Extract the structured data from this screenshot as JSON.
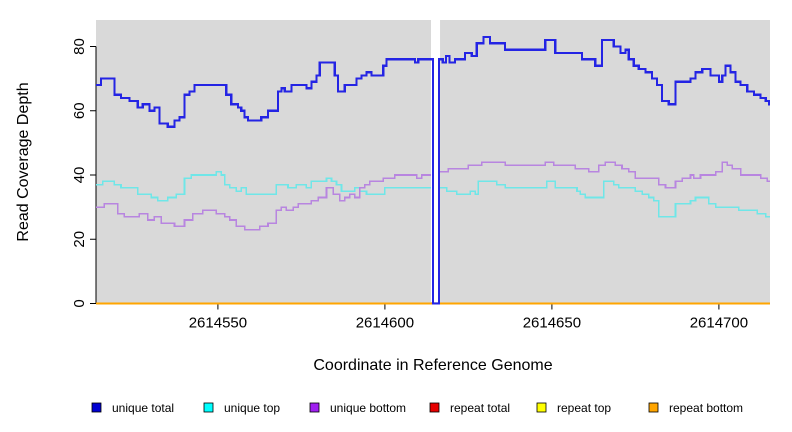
{
  "chart_data": {
    "type": "line",
    "subtype": "step",
    "title": "",
    "xlabel": "Coordinate in Reference Genome",
    "ylabel": "Read Coverage Depth",
    "x_range": [
      2614513.5,
      2614715.3
    ],
    "y_range": [
      0,
      88
    ],
    "x_ticks": [
      2614550,
      2614600,
      2614650,
      2614700
    ],
    "y_ticks": [
      0,
      20,
      40,
      60,
      80
    ],
    "grid": "off",
    "legend_position": "bottom",
    "plot_bg_color": "#d9d9d9",
    "axis_color": "#000000",
    "gap_region": {
      "x_start": 2614613.8,
      "x_end": 2614616.5,
      "fill": "#ffffff"
    },
    "series": [
      {
        "name": "unique total",
        "legend_color": "#0000d2",
        "line_color": "#2424e4",
        "line_width": 2.2,
        "points": [
          [
            2614513.5,
            68
          ],
          [
            2614515,
            70
          ],
          [
            2614519,
            65
          ],
          [
            2614521,
            64
          ],
          [
            2614523.5,
            63
          ],
          [
            2614526,
            61
          ],
          [
            2614527.5,
            62
          ],
          [
            2614529.5,
            60
          ],
          [
            2614531,
            61
          ],
          [
            2614532.5,
            56
          ],
          [
            2614535,
            55
          ],
          [
            2614537,
            57
          ],
          [
            2614538.5,
            58
          ],
          [
            2614540,
            65
          ],
          [
            2614541.5,
            66
          ],
          [
            2614543,
            68
          ],
          [
            2614552.5,
            65
          ],
          [
            2614554,
            62
          ],
          [
            2614556,
            61
          ],
          [
            2614557,
            60
          ],
          [
            2614558,
            58
          ],
          [
            2614559,
            57
          ],
          [
            2614563,
            58
          ],
          [
            2614565,
            60
          ],
          [
            2614568,
            66
          ],
          [
            2614569,
            67
          ],
          [
            2614570,
            66
          ],
          [
            2614572,
            68
          ],
          [
            2614576.5,
            67
          ],
          [
            2614578,
            69
          ],
          [
            2614579.5,
            71
          ],
          [
            2614580.5,
            75
          ],
          [
            2614585,
            71
          ],
          [
            2614586,
            66
          ],
          [
            2614588,
            68
          ],
          [
            2614591.5,
            70
          ],
          [
            2614593,
            71
          ],
          [
            2614594.5,
            72
          ],
          [
            2614596,
            71
          ],
          [
            2614599.5,
            74
          ],
          [
            2614600.5,
            76
          ],
          [
            2614609,
            75
          ],
          [
            2614610,
            76
          ],
          [
            2614614.4,
            0
          ],
          [
            2614616.2,
            76
          ],
          [
            2614617.3,
            75
          ],
          [
            2614618.3,
            77
          ],
          [
            2614619.3,
            75
          ],
          [
            2614621,
            76
          ],
          [
            2614624,
            78
          ],
          [
            2614626,
            77
          ],
          [
            2614627.5,
            81
          ],
          [
            2614629.5,
            83
          ],
          [
            2614631.5,
            81
          ],
          [
            2614636,
            79
          ],
          [
            2614648,
            82
          ],
          [
            2614651,
            78
          ],
          [
            2614659,
            76
          ],
          [
            2614663,
            74
          ],
          [
            2614665,
            82
          ],
          [
            2614668.5,
            80
          ],
          [
            2614670.5,
            78
          ],
          [
            2614672,
            79
          ],
          [
            2614673,
            76
          ],
          [
            2614674.5,
            74
          ],
          [
            2614676,
            73
          ],
          [
            2614678,
            72
          ],
          [
            2614680,
            70
          ],
          [
            2614681.5,
            68
          ],
          [
            2614683,
            63
          ],
          [
            2614685,
            62
          ],
          [
            2614687,
            69
          ],
          [
            2614691.5,
            70
          ],
          [
            2614693,
            72
          ],
          [
            2614695,
            73
          ],
          [
            2614697.5,
            71
          ],
          [
            2614700,
            69
          ],
          [
            2614701,
            71
          ],
          [
            2614702,
            74
          ],
          [
            2614703.5,
            72
          ],
          [
            2614705,
            69
          ],
          [
            2614706.5,
            68
          ],
          [
            2614708.5,
            66
          ],
          [
            2614710.5,
            65
          ],
          [
            2614712.5,
            64
          ],
          [
            2614714,
            63
          ],
          [
            2614715,
            62
          ]
        ]
      },
      {
        "name": "unique top",
        "legend_color": "#00ffff",
        "line_color": "#6fe6e8",
        "line_width": 1.6,
        "points": [
          [
            2614513.5,
            37
          ],
          [
            2614515.5,
            38
          ],
          [
            2614519,
            37
          ],
          [
            2614521,
            36
          ],
          [
            2614526,
            34
          ],
          [
            2614530,
            33
          ],
          [
            2614532,
            32
          ],
          [
            2614535,
            33
          ],
          [
            2614537.5,
            34
          ],
          [
            2614540,
            39
          ],
          [
            2614542,
            40
          ],
          [
            2614549.5,
            41
          ],
          [
            2614551,
            40
          ],
          [
            2614552,
            37
          ],
          [
            2614553.5,
            36
          ],
          [
            2614555.5,
            35
          ],
          [
            2614557,
            36
          ],
          [
            2614558.5,
            34
          ],
          [
            2614567.5,
            37
          ],
          [
            2614571,
            36
          ],
          [
            2614573.5,
            37
          ],
          [
            2614576.5,
            36
          ],
          [
            2614578,
            38
          ],
          [
            2614582.5,
            39
          ],
          [
            2614584,
            38
          ],
          [
            2614585.5,
            37
          ],
          [
            2614587,
            35
          ],
          [
            2614591,
            36
          ],
          [
            2614592.5,
            35
          ],
          [
            2614594.5,
            34
          ],
          [
            2614600,
            36
          ],
          [
            2614613.8,
            null
          ],
          [
            2614616.5,
            36
          ],
          [
            2614618.5,
            35
          ],
          [
            2614621.5,
            34
          ],
          [
            2614625.5,
            35
          ],
          [
            2614627,
            34
          ],
          [
            2614628,
            38
          ],
          [
            2614633.5,
            37
          ],
          [
            2614636,
            36
          ],
          [
            2614648.5,
            38
          ],
          [
            2614651,
            36
          ],
          [
            2614657.5,
            35
          ],
          [
            2614658.5,
            34
          ],
          [
            2614660,
            33
          ],
          [
            2614665.5,
            38
          ],
          [
            2614668.5,
            37
          ],
          [
            2614670,
            36
          ],
          [
            2614675,
            35
          ],
          [
            2614677,
            34
          ],
          [
            2614679,
            33
          ],
          [
            2614680.5,
            32
          ],
          [
            2614682,
            27
          ],
          [
            2614687,
            31
          ],
          [
            2614691.5,
            32
          ],
          [
            2614693,
            33
          ],
          [
            2614697,
            31
          ],
          [
            2614699,
            30
          ],
          [
            2614706,
            29
          ],
          [
            2614711.5,
            28
          ],
          [
            2614714,
            27
          ]
        ]
      },
      {
        "name": "unique bottom",
        "legend_color": "#a020f0",
        "line_color": "#b885e0",
        "line_width": 1.6,
        "points": [
          [
            2614513.5,
            30
          ],
          [
            2614516,
            31
          ],
          [
            2614520,
            28
          ],
          [
            2614522,
            27
          ],
          [
            2614526.5,
            28
          ],
          [
            2614529,
            26
          ],
          [
            2614531,
            27
          ],
          [
            2614533,
            25
          ],
          [
            2614537,
            24
          ],
          [
            2614540,
            26
          ],
          [
            2614542.5,
            28
          ],
          [
            2614545.5,
            29
          ],
          [
            2614549.5,
            28
          ],
          [
            2614552,
            27
          ],
          [
            2614553.5,
            26
          ],
          [
            2614555.5,
            24
          ],
          [
            2614558,
            23
          ],
          [
            2614562.5,
            24
          ],
          [
            2614565,
            25
          ],
          [
            2614567.5,
            29
          ],
          [
            2614569,
            30
          ],
          [
            2614570.5,
            29
          ],
          [
            2614572.5,
            30
          ],
          [
            2614574,
            31
          ],
          [
            2614578,
            32
          ],
          [
            2614580,
            33
          ],
          [
            2614582.5,
            36
          ],
          [
            2614584.5,
            34
          ],
          [
            2614586.5,
            32
          ],
          [
            2614588,
            33
          ],
          [
            2614589.5,
            34
          ],
          [
            2614591,
            33
          ],
          [
            2614592.5,
            36
          ],
          [
            2614594,
            37
          ],
          [
            2614595.5,
            38
          ],
          [
            2614599.5,
            39
          ],
          [
            2614603,
            40
          ],
          [
            2614609.5,
            39
          ],
          [
            2614611,
            40
          ],
          [
            2614613.8,
            null
          ],
          [
            2614616.5,
            41
          ],
          [
            2614619,
            42
          ],
          [
            2614625,
            43
          ],
          [
            2614629,
            44
          ],
          [
            2614636,
            43
          ],
          [
            2614648,
            44
          ],
          [
            2614650.5,
            43
          ],
          [
            2614657,
            42
          ],
          [
            2614661,
            41
          ],
          [
            2614664,
            43
          ],
          [
            2614666,
            44
          ],
          [
            2614669,
            43
          ],
          [
            2614671,
            42
          ],
          [
            2614673,
            41
          ],
          [
            2614675,
            39
          ],
          [
            2614682,
            37
          ],
          [
            2614684,
            36
          ],
          [
            2614687,
            38
          ],
          [
            2614689,
            39
          ],
          [
            2614691.5,
            40
          ],
          [
            2614692.5,
            39
          ],
          [
            2614694.5,
            40
          ],
          [
            2614699,
            41
          ],
          [
            2614701,
            44
          ],
          [
            2614702.5,
            43
          ],
          [
            2614704,
            42
          ],
          [
            2614706.5,
            40
          ],
          [
            2614712.5,
            39
          ],
          [
            2614714.5,
            38
          ]
        ]
      },
      {
        "name": "repeat total",
        "legend_color": "#e60000",
        "line_color": "#e60000",
        "line_width": 1.6,
        "points": [
          [
            2614513.5,
            0
          ]
        ]
      },
      {
        "name": "repeat top",
        "legend_color": "#ffff00",
        "line_color": "#ffff00",
        "line_width": 1.6,
        "points": [
          [
            2614513.5,
            0
          ]
        ]
      },
      {
        "name": "repeat bottom",
        "legend_color": "#ffa500",
        "line_color": "#ffa500",
        "line_width": 2,
        "points": [
          [
            2614513.5,
            0
          ]
        ]
      }
    ]
  }
}
